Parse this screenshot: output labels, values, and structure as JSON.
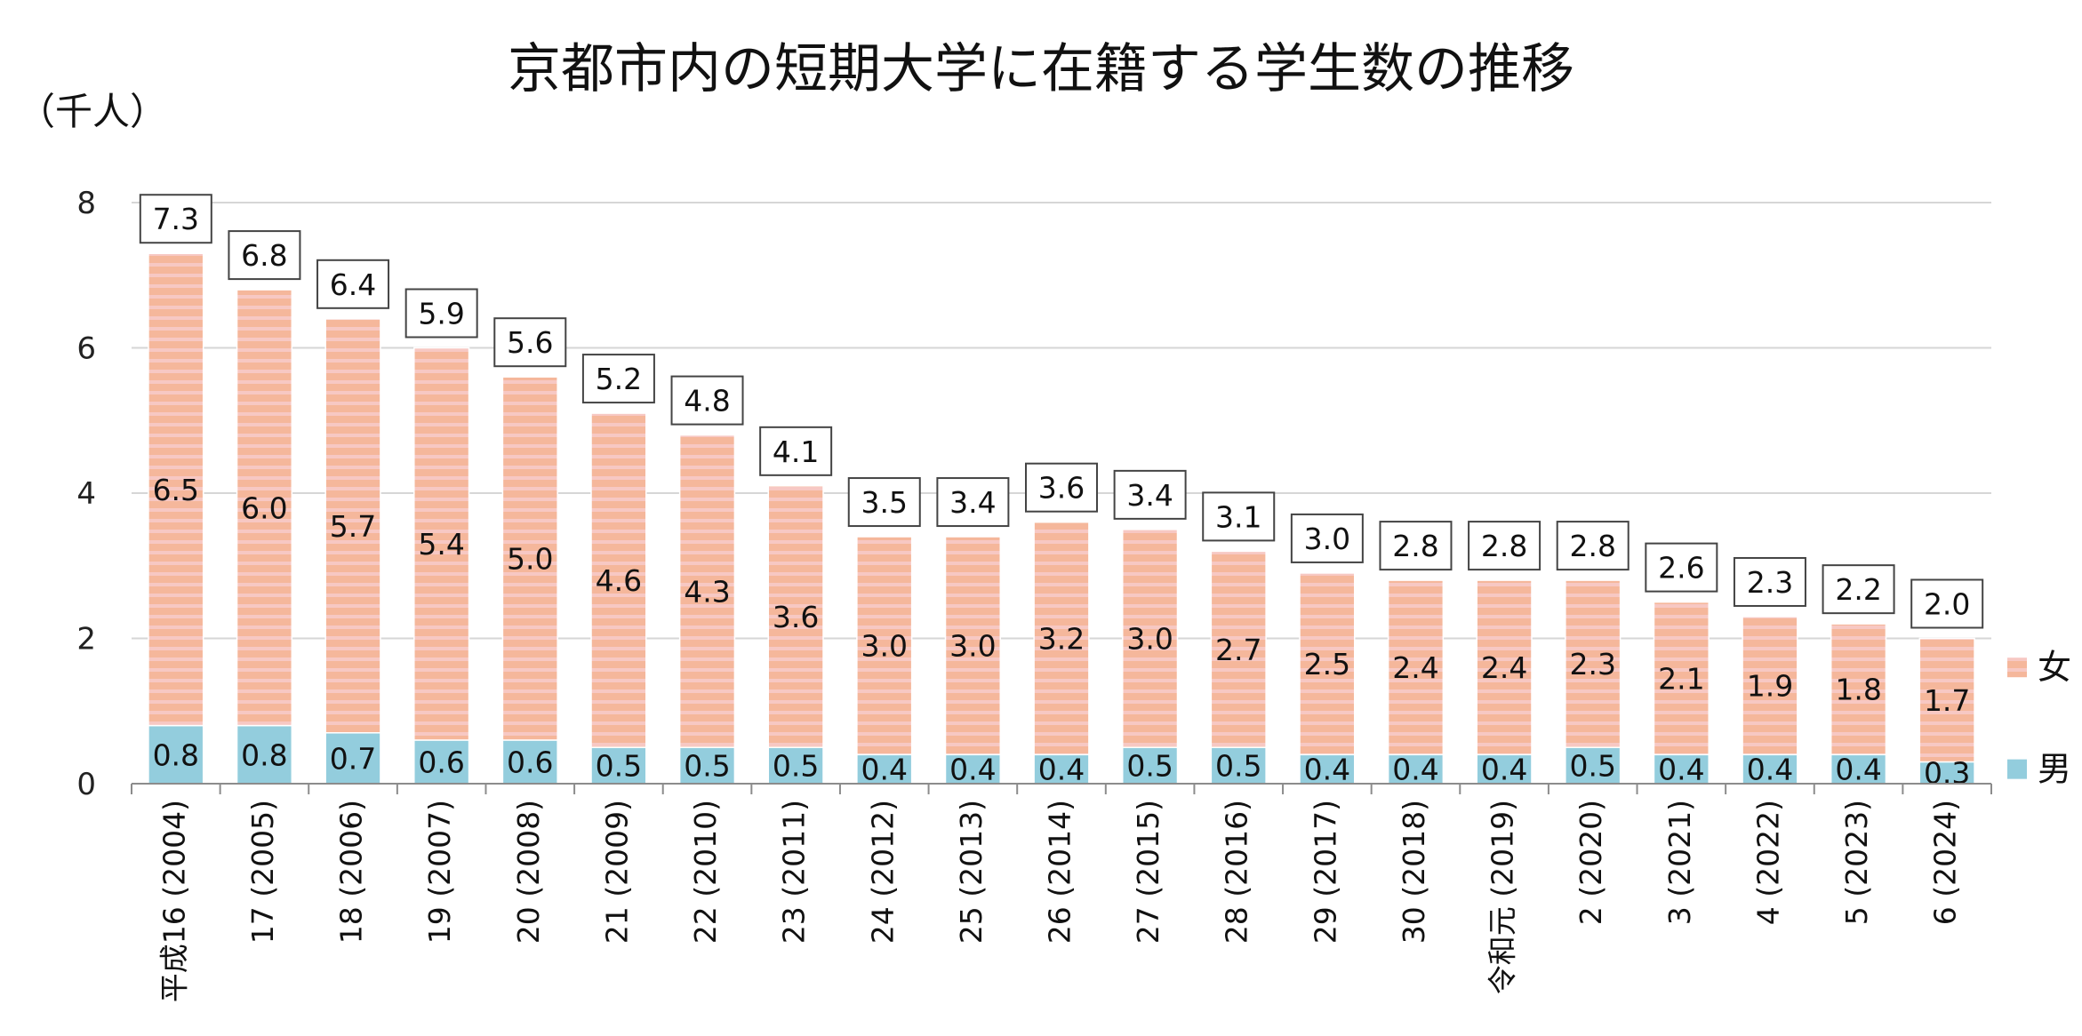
{
  "chart_data": {
    "type": "bar",
    "stacked": true,
    "title": "京都市内の短期大学に在籍する学生数の推移",
    "ylabel": "（千人）",
    "xlabel": "",
    "ylim": [
      0,
      8
    ],
    "yticks": [
      "0",
      "2",
      "4",
      "6",
      "8"
    ],
    "grid": true,
    "legend_position": "right",
    "categories": [
      "平成16 (2004)",
      "17 (2005)",
      "18 (2006)",
      "19 (2007)",
      "20 (2008)",
      "21 (2009)",
      "22 (2010)",
      "23 (2011)",
      "24 (2012)",
      "25 (2013)",
      "26 (2014)",
      "27 (2015)",
      "28 (2016)",
      "29 (2017)",
      "30 (2018)",
      "令和元 (2019)",
      "2 (2020)",
      "3 (2021)",
      "4 (2022)",
      "5 (2023)",
      "6 (2024)"
    ],
    "series": [
      {
        "name": "男",
        "color": "#93cddd",
        "values": [
          0.8,
          0.8,
          0.7,
          0.6,
          0.6,
          0.5,
          0.5,
          0.5,
          0.4,
          0.4,
          0.4,
          0.5,
          0.5,
          0.4,
          0.4,
          0.4,
          0.5,
          0.4,
          0.4,
          0.4,
          0.3
        ],
        "labels": [
          "0.8",
          "0.8",
          "0.7",
          "0.6",
          "0.6",
          "0.5",
          "0.5",
          "0.5",
          "0.4",
          "0.4",
          "0.4",
          "0.5",
          "0.5",
          "0.4",
          "0.4",
          "0.4",
          "0.5",
          "0.4",
          "0.4",
          "0.4",
          "0.3"
        ]
      },
      {
        "name": "女",
        "color": "#f5b79b",
        "values": [
          6.5,
          6.0,
          5.7,
          5.4,
          5.0,
          4.6,
          4.3,
          3.6,
          3.0,
          3.0,
          3.2,
          3.0,
          2.7,
          2.5,
          2.4,
          2.4,
          2.3,
          2.1,
          1.9,
          1.8,
          1.7
        ],
        "labels": [
          "6.5",
          "6.0",
          "5.7",
          "5.4",
          "5.0",
          "4.6",
          "4.3",
          "3.6",
          "3.0",
          "3.0",
          "3.2",
          "3.0",
          "2.7",
          "2.5",
          "2.4",
          "2.4",
          "2.3",
          "2.1",
          "1.9",
          "1.8",
          "1.7"
        ]
      }
    ],
    "totals": [
      7.3,
      6.8,
      6.4,
      5.9,
      5.6,
      5.2,
      4.8,
      4.1,
      3.5,
      3.4,
      3.6,
      3.4,
      3.1,
      3.0,
      2.8,
      2.8,
      2.8,
      2.6,
      2.3,
      2.2,
      2.0
    ],
    "total_labels": [
      "7.3",
      "6.8",
      "6.4",
      "5.9",
      "5.6",
      "5.2",
      "4.8",
      "4.1",
      "3.5",
      "3.4",
      "3.6",
      "3.4",
      "3.1",
      "3.0",
      "2.8",
      "2.8",
      "2.8",
      "2.6",
      "2.3",
      "2.2",
      "2.0"
    ]
  }
}
